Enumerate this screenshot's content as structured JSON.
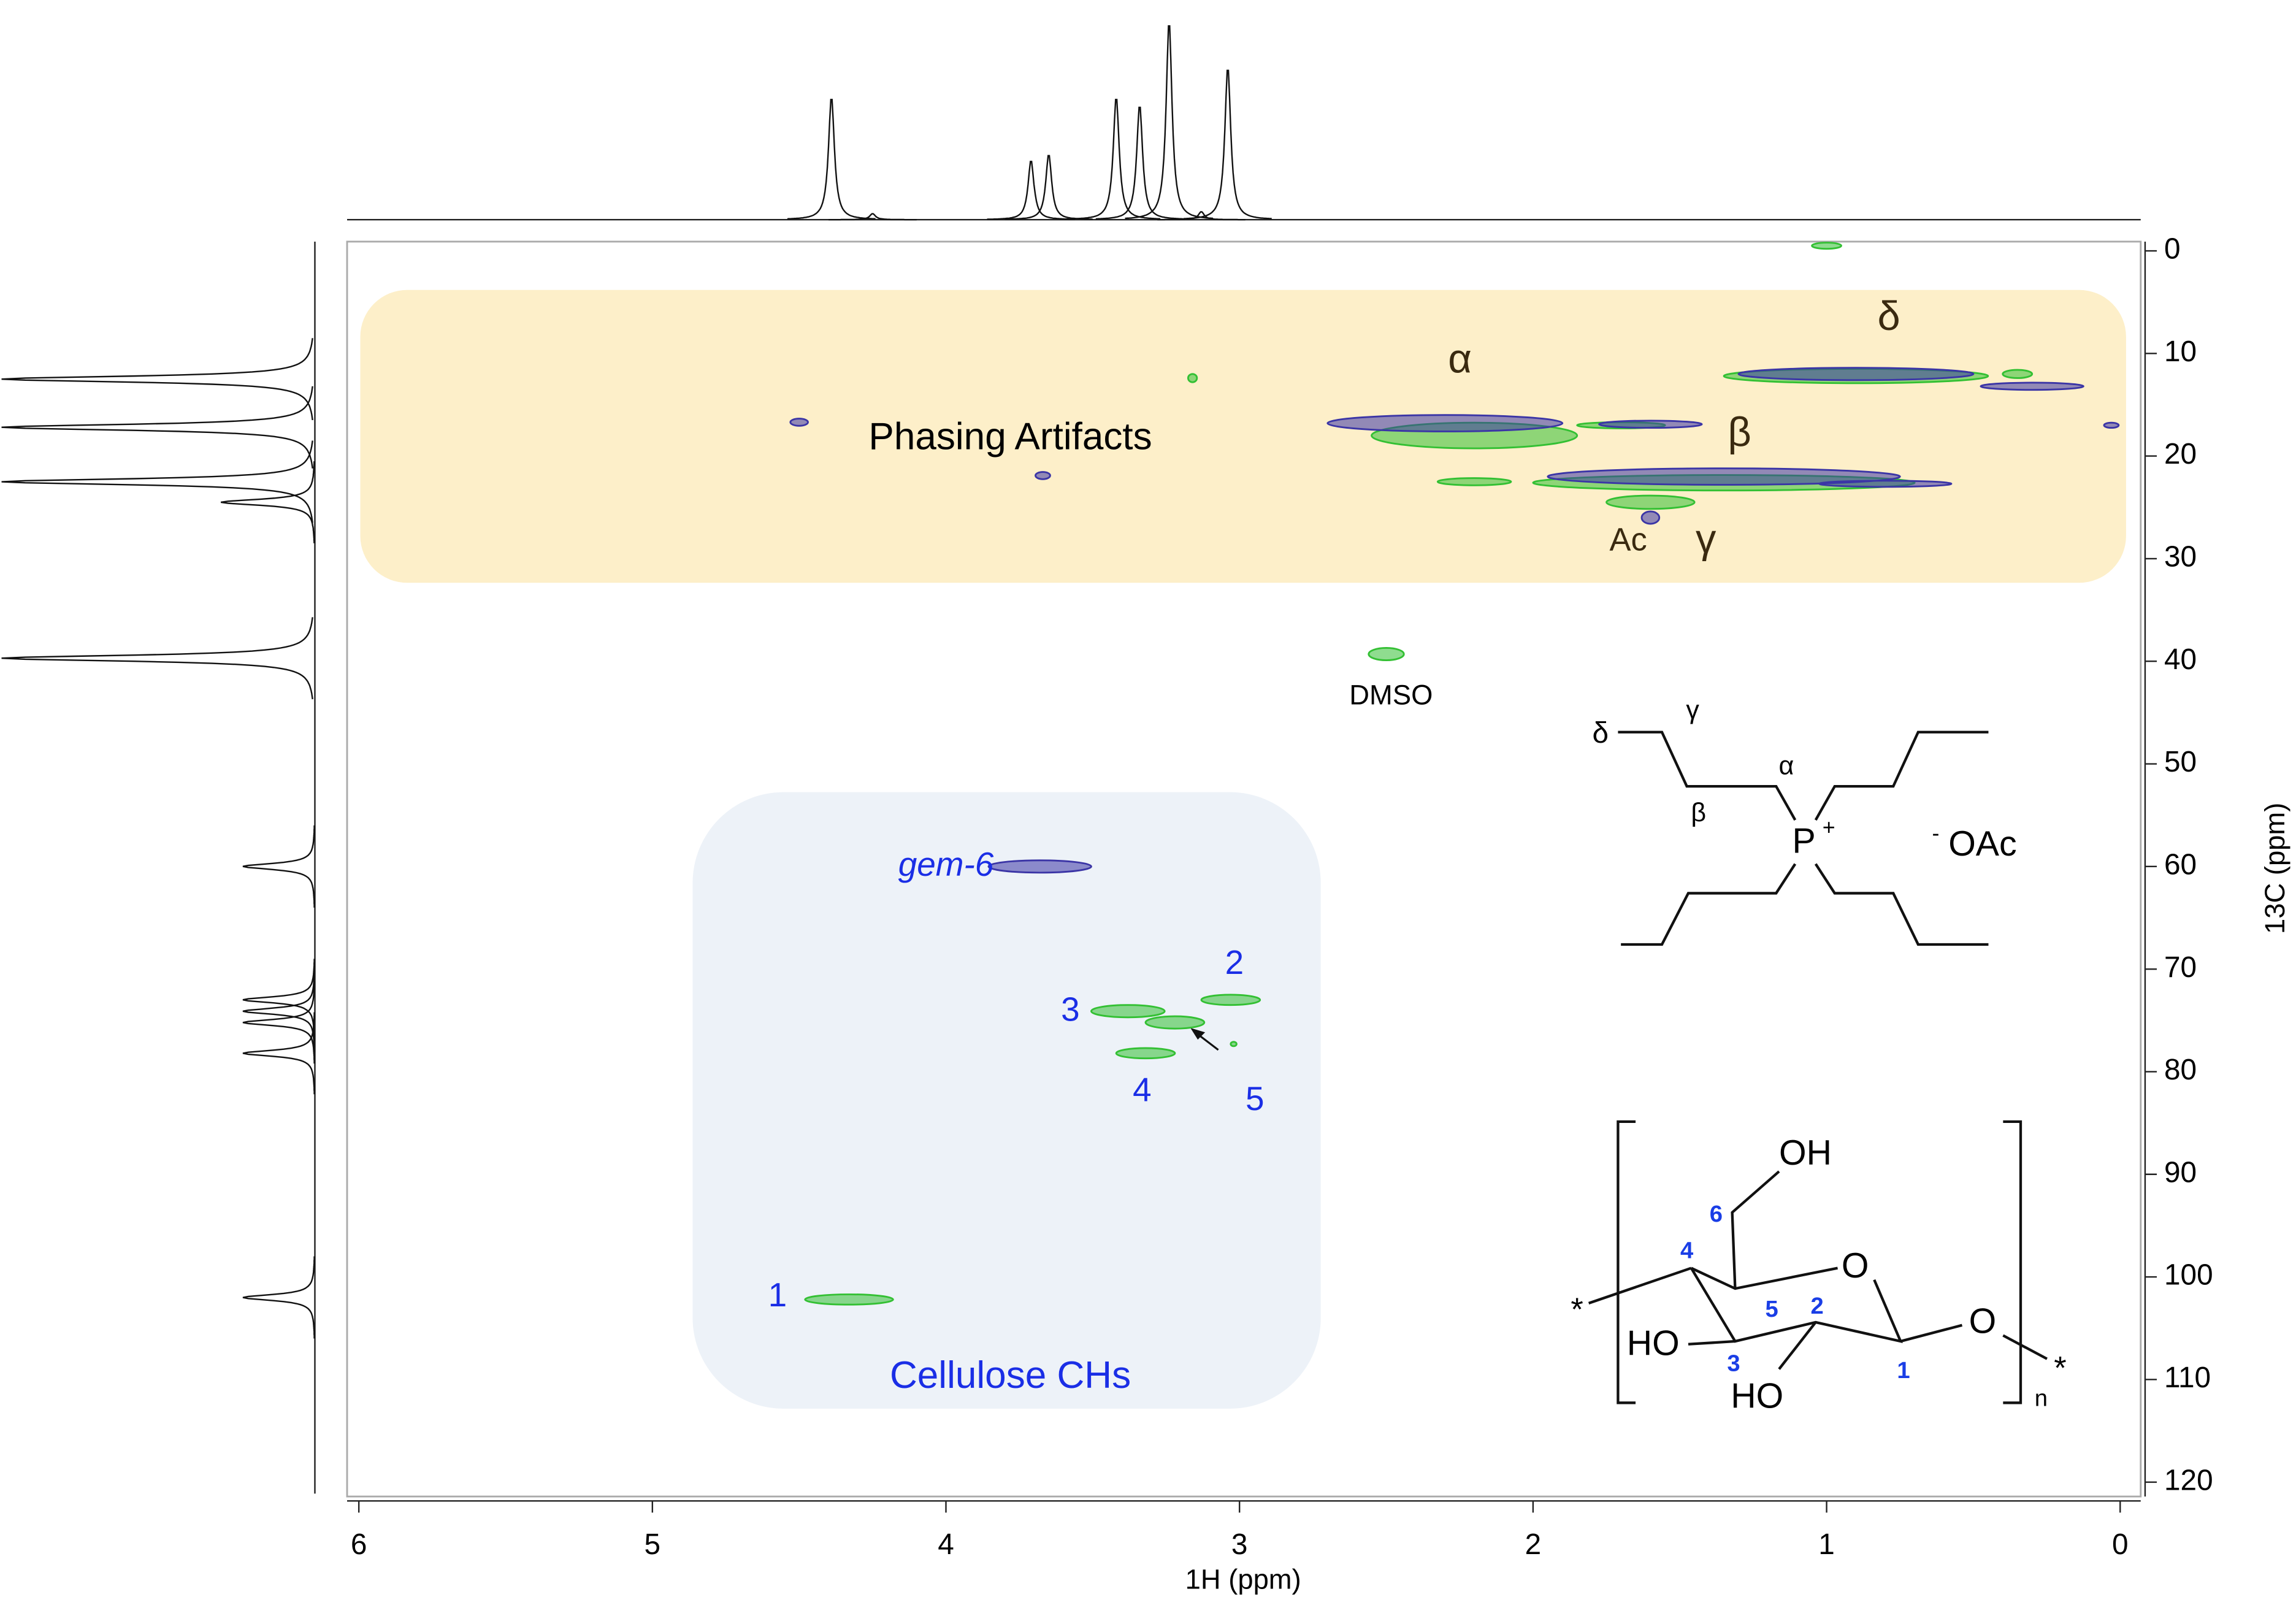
{
  "chart_data": {
    "type": "contour",
    "x_label": "1H (ppm)",
    "y_label": "13C (ppm)",
    "xlim": [
      6.04,
      -0.07
    ],
    "ylim": [
      -0.9,
      121.4
    ],
    "xticks": [
      6,
      5,
      4,
      3,
      2,
      1,
      0
    ],
    "yticks": [
      0,
      10,
      20,
      30,
      40,
      50,
      60,
      70,
      80,
      90,
      100,
      110,
      120
    ],
    "series": [
      {
        "color": "#33c033",
        "x": [
          1.0,
          3.16,
          0.9,
          0.35,
          2.2,
          1.35,
          1.6,
          2.2,
          1.7,
          2.5,
          3.03,
          3.38,
          3.22,
          3.32,
          3.02,
          4.33
        ],
        "values": [
          -0.5,
          12.4,
          12.2,
          12,
          18,
          22.6,
          24.5,
          22.5,
          17,
          39.3,
          73,
          74.1,
          75.2,
          78.2,
          77.3,
          102.2
        ],
        "xwidth": [
          0.1,
          0.03,
          0.9,
          0.1,
          0.7,
          1.3,
          0.3,
          0.25,
          0.3,
          0.12,
          0.2,
          0.25,
          0.2,
          0.2,
          0.02,
          0.3
        ],
        "ywidth": [
          0.6,
          0.8,
          1.4,
          0.8,
          2.5,
          1.5,
          1.3,
          0.7,
          0.6,
          1.2,
          1.0,
          1.2,
          1.2,
          1.0,
          0.3,
          1.0
        ]
      },
      {
        "color": "#3b35a6",
        "x": [
          4.5,
          3.67,
          3.68,
          2.3,
          1.6,
          1.35,
          0.9,
          0.3,
          0.03,
          1.6,
          0.8
        ],
        "values": [
          16.7,
          21.9,
          60,
          16.8,
          16.9,
          22.0,
          12,
          13.2,
          17,
          26,
          22.7
        ],
        "xwidth": [
          0.06,
          0.05,
          0.35,
          0.8,
          0.35,
          1.2,
          0.8,
          0.35,
          0.05,
          0.06,
          0.45
        ],
        "ywidth": [
          0.7,
          0.7,
          1.2,
          1.6,
          0.7,
          1.6,
          1.2,
          0.7,
          0.5,
          1.2,
          0.6
        ]
      }
    ],
    "x_projection": {
      "x": [
        4.39,
        4.25,
        3.71,
        3.65,
        3.42,
        3.34,
        3.24,
        3.13,
        3.04
      ],
      "heights": [
        0.62,
        0.03,
        0.3,
        0.33,
        0.62,
        0.58,
        1.0,
        0.04,
        0.77
      ]
    },
    "y_projection": {
      "y": [
        12.5,
        17.2,
        22.5,
        24.5,
        39.7,
        60,
        73,
        74.1,
        75.2,
        78.2,
        102
      ],
      "heights": [
        1.0,
        1.0,
        1.0,
        0.3,
        1.0,
        0.23,
        0.23,
        0.23,
        0.23,
        0.23,
        0.23
      ]
    },
    "annotations": [
      "Phasing Artifacts",
      "α",
      "β",
      "γ",
      "δ",
      "Ac",
      "DMSO",
      "gem-6",
      "1",
      "2",
      "3",
      "4",
      "5",
      "Cellulose CHs"
    ]
  },
  "structures": {
    "phosphonium": {
      "delta": "δ",
      "gamma": "γ",
      "alpha": "α",
      "beta": "β",
      "cation": "P",
      "charge": "+",
      "anion_charge": "-",
      "anion": "OAc"
    },
    "cellulose": {
      "oh6": "OH",
      "c6": "6",
      "c4": "4",
      "c5": "5",
      "c2": "2",
      "c3": "3",
      "c1": "1",
      "ring_o": "O",
      "link_o": "O",
      "ho3": "HO",
      "ho2": "HO",
      "star_left": "*",
      "star_right": "*",
      "n": "n"
    }
  }
}
